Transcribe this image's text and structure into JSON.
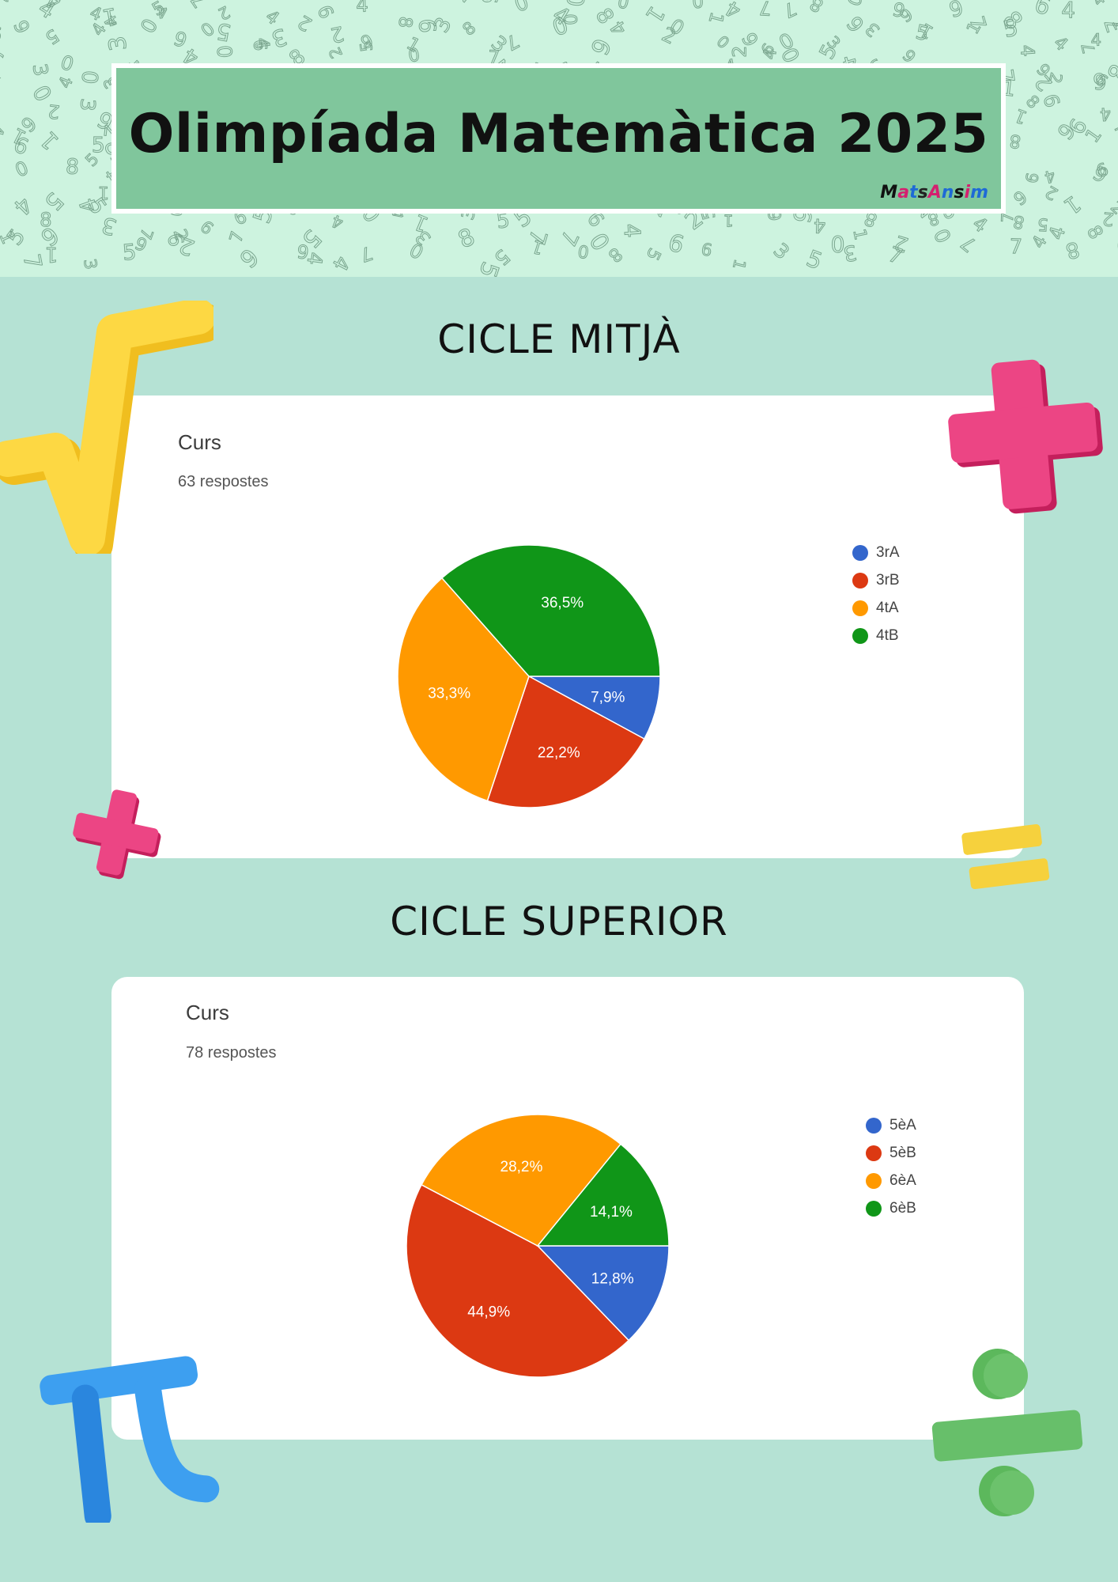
{
  "header": {
    "title": "Olimpíada Matemàtica 2025",
    "logo_text": "MatsAnsim"
  },
  "sections": [
    {
      "heading": "CICLE MITJÀ",
      "card_title": "Curs",
      "responses": "63 respostes"
    },
    {
      "heading": "CICLE SUPERIOR",
      "card_title": "Curs",
      "responses": "78 respostes"
    }
  ],
  "colors": {
    "blue": "#3366cc",
    "red": "#dc3912",
    "orange": "#ff9900",
    "green": "#109618",
    "page_bg": "#b5e2d4",
    "header_green": "#80c69c"
  },
  "decorations": [
    "square-root-icon",
    "plus-icon",
    "small-plus-icon",
    "equals-icon",
    "pi-icon",
    "divide-icon"
  ],
  "chart_data": [
    {
      "type": "pie",
      "title": "Curs",
      "categories": [
        "3rA",
        "3rB",
        "4tA",
        "4tB"
      ],
      "values": [
        7.9,
        22.2,
        33.3,
        36.5
      ],
      "labels": [
        "7,9%",
        "22,2%",
        "33,3%",
        "36,5%"
      ],
      "colors": [
        "#3366cc",
        "#dc3912",
        "#ff9900",
        "#109618"
      ],
      "legend": "right"
    },
    {
      "type": "pie",
      "title": "Curs",
      "categories": [
        "5èA",
        "5èB",
        "6èA",
        "6èB"
      ],
      "values": [
        12.8,
        44.9,
        28.2,
        14.1
      ],
      "labels": [
        "12,8%",
        "44,9%",
        "28,2%",
        "14,1%"
      ],
      "colors": [
        "#3366cc",
        "#dc3912",
        "#ff9900",
        "#109618"
      ],
      "legend": "right"
    }
  ]
}
